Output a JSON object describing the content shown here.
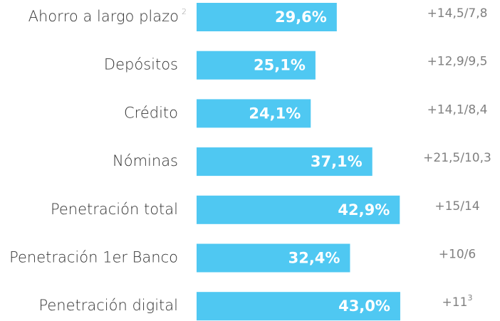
{
  "chart_data": {
    "type": "bar",
    "orientation": "horizontal",
    "categories": [
      "Ahorro a largo plazo",
      "Depósitos",
      "Crédito",
      "Nóminas",
      "Penetración total",
      "Penetración 1er Banco",
      "Penetración digital"
    ],
    "category_footnotes": [
      "2",
      null,
      null,
      null,
      null,
      null,
      null
    ],
    "values": [
      29.6,
      25.1,
      24.1,
      37.1,
      42.9,
      32.4,
      43.0
    ],
    "value_labels": [
      "29,6%",
      "25,1%",
      "24,1%",
      "37,1%",
      "42,9%",
      "32,4%",
      "43,0%"
    ],
    "color": "#4fc8f2",
    "annotations": [
      "+14,5/7,8",
      "+12,9/9,5",
      "+14,1/8,4",
      "+21,5/10,3",
      "+15/14",
      "+10/6",
      "+11"
    ],
    "annotation_footnotes": [
      null,
      null,
      null,
      null,
      null,
      null,
      "3"
    ]
  }
}
